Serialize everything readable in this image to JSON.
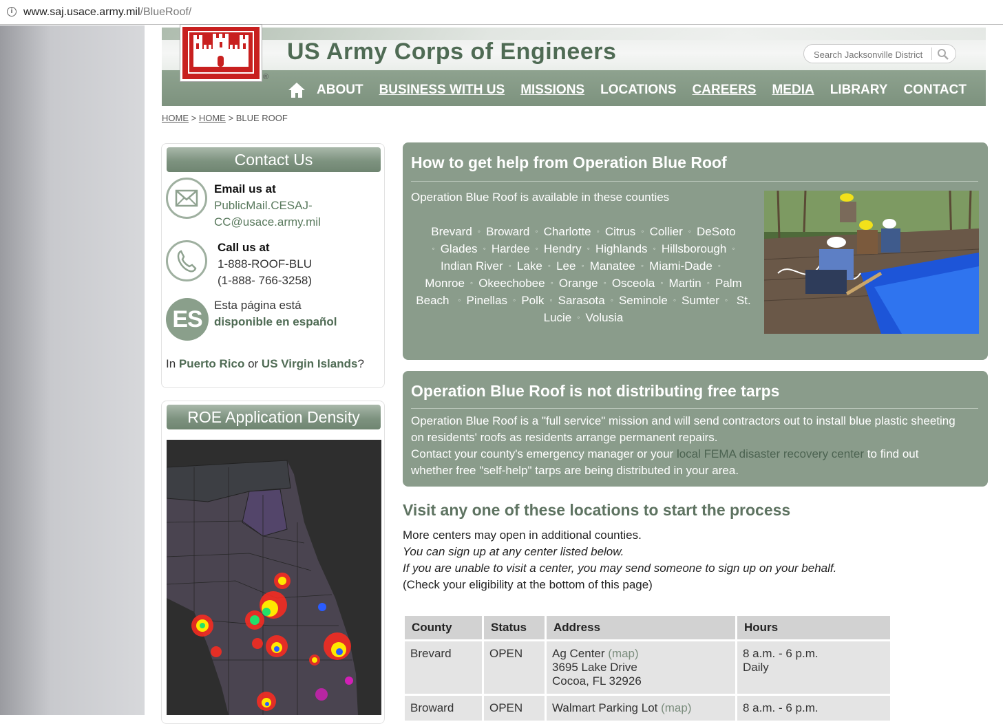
{
  "browser": {
    "url_host": "www.saj.usace.army.mil",
    "url_path": "/BlueRoof/"
  },
  "header": {
    "title": "US Army Corps of Engineers",
    "search_placeholder": "Search Jacksonville District",
    "registered_mark": "®",
    "nav": [
      "ABOUT",
      "BUSINESS WITH US",
      "MISSIONS",
      "LOCATIONS",
      "CAREERS",
      "MEDIA",
      "LIBRARY",
      "CONTACT"
    ]
  },
  "breadcrumb": {
    "home1": "HOME",
    "home2": "HOME",
    "current": "BLUE ROOF",
    "sep": ">"
  },
  "contact": {
    "heading": "Contact Us",
    "email_label": "Email us at",
    "email_line1": "PublicMail.CESAJ-",
    "email_line2": "CC@usace.army.mil",
    "call_label": "Call us at",
    "phone1": "1-888-ROOF-BLU",
    "phone2": "(1-888- 766-3258)",
    "es_badge": "ES",
    "spanish_line1": "Esta página está",
    "spanish_line2": "disponible en español",
    "pr_prefix": "In",
    "pr_link1": "Puerto Rico",
    "pr_or": "or",
    "pr_link2": "US Virgin Islands",
    "pr_suffix": "?"
  },
  "density": {
    "heading": "ROE Application Density"
  },
  "help_panel": {
    "title": "How to get help from Operation Blue Roof",
    "intro": "Operation Blue Roof is available in these counties",
    "counties": [
      "Brevard",
      "Broward",
      "Charlotte",
      "Citrus",
      "Collier",
      "DeSoto",
      "Glades",
      "Hardee",
      "Hendry",
      "Highlands",
      "Hillsborough",
      "Indian River",
      "Lake",
      "Lee",
      "Manatee",
      "Miami-Dade",
      "Monroe",
      "Okeechobee",
      "Orange",
      "Osceola",
      "Martin",
      "Palm Beach",
      "Pinellas",
      "Polk",
      "Sarasota",
      "Seminole",
      "Sumter",
      "St. Lucie",
      "Volusia"
    ]
  },
  "tarps_panel": {
    "title": "Operation Blue Roof is not distributing free tarps",
    "line1": "Operation Blue Roof is a \"full service\" mission and will send contractors out to install blue plastic sheeting",
    "line2": "on residents' roofs as residents arrange permanent repairs.",
    "line3_prefix": "Contact your county's emergency manager or your",
    "line3_link": "local FEMA disaster recovery center",
    "line3_suffix": "to find out",
    "line4": "whether free \"self-help\" tarps are being distributed in your area."
  },
  "visit": {
    "heading": "Visit any one of these locations to start the process",
    "line1": "More centers may open in additional counties.",
    "line2": "You can sign up at any center listed below.",
    "line3": "If you are unable to visit a center, you may send someone to sign up on your behalf.",
    "line4": "(Check your eligibility at the bottom of this page)"
  },
  "table": {
    "headers": [
      "County",
      "Status",
      "Address",
      "Hours"
    ],
    "rows": [
      {
        "county": "Brevard",
        "status": "OPEN",
        "place": "Ag Center",
        "map": "(map)",
        "street": "3695 Lake Drive",
        "city": "Cocoa, FL 32926",
        "hours1": "8 a.m. - 6 p.m.",
        "hours2": "Daily"
      },
      {
        "county": "Broward",
        "status": "OPEN",
        "place": "Walmart Parking Lot",
        "map": "(map)",
        "street": "",
        "city": "",
        "hours1": "8 a.m. - 6 p.m.",
        "hours2": ""
      }
    ]
  },
  "colors": {
    "panel": "#8a9c8b",
    "nav": "#7d927e",
    "logo_red": "#c8201f",
    "title_green": "#4f6b54"
  }
}
